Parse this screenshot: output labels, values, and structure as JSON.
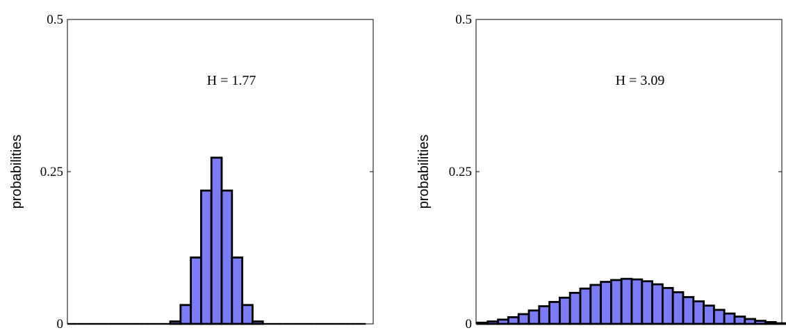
{
  "chart_data": [
    {
      "type": "bar",
      "ylabel": "probabilities",
      "ylim": [
        0,
        0.5
      ],
      "yticks": [
        "0",
        "0.25",
        "0.5"
      ],
      "grid": false,
      "annotation": "H = 1.77",
      "bar_color": "#7b7bf5",
      "edge_color": "#000000",
      "values": [
        0,
        0,
        0,
        0,
        0,
        0,
        0,
        0,
        0,
        0,
        0.004,
        0.031,
        0.109,
        0.219,
        0.273,
        0.219,
        0.109,
        0.031,
        0.004,
        0,
        0,
        0,
        0,
        0,
        0,
        0,
        0,
        0,
        0
      ]
    },
    {
      "type": "bar",
      "ylabel": "probabilities",
      "ylim": [
        0,
        0.5
      ],
      "yticks": [
        "0",
        "0.25",
        "0.5"
      ],
      "grid": false,
      "annotation": "H = 3.09",
      "bar_color": "#7b7bf5",
      "edge_color": "#000000",
      "values": [
        0.002,
        0.004,
        0.007,
        0.011,
        0.016,
        0.022,
        0.029,
        0.036,
        0.043,
        0.051,
        0.058,
        0.064,
        0.069,
        0.072,
        0.074,
        0.073,
        0.07,
        0.065,
        0.059,
        0.052,
        0.044,
        0.037,
        0.03,
        0.023,
        0.017,
        0.012,
        0.008,
        0.005,
        0.003,
        0.001
      ]
    }
  ]
}
